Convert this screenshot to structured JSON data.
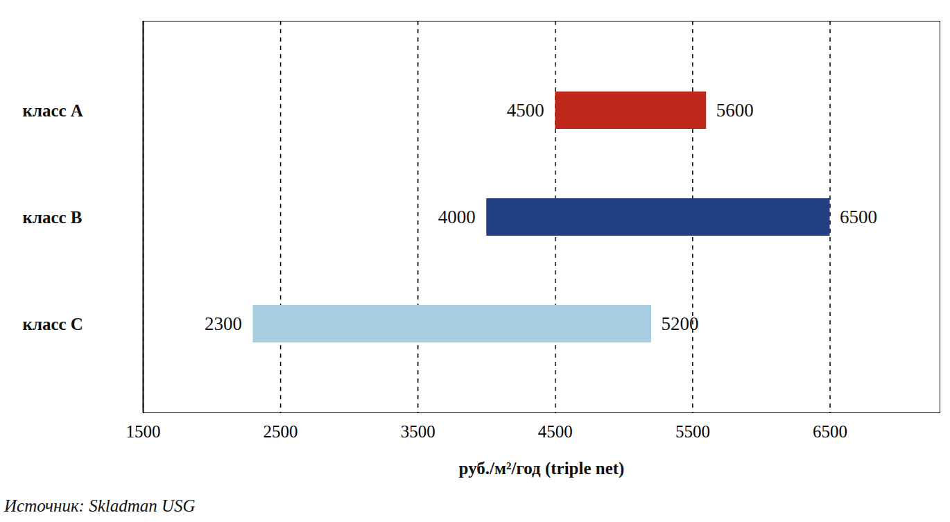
{
  "chart_data": {
    "type": "bar",
    "orientation": "horizontal",
    "categories": [
      "класс A",
      "класс B",
      "класс C"
    ],
    "values": [
      [
        4500,
        5600
      ],
      [
        4000,
        6500
      ],
      [
        2300,
        5200
      ]
    ],
    "colors": [
      "#c0281c",
      "#233f84",
      "#a7cde1"
    ],
    "xlim": [
      1500,
      7300
    ],
    "xticks": [
      1500,
      2500,
      3500,
      4500,
      5500,
      6500
    ],
    "x_label": "руб./м²/год (triple net)",
    "grid": true,
    "data_labels": true,
    "source": "Источник: Skladman USG"
  }
}
